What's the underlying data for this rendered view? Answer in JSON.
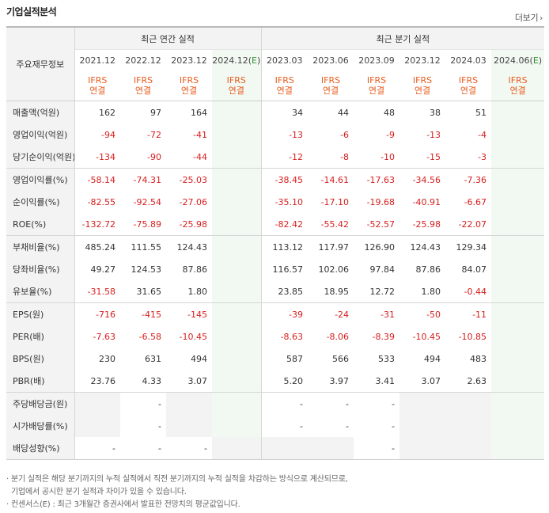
{
  "section_title": "기업실적분석",
  "more_label": "더보기",
  "row_header_label": "주요재무정보",
  "annual_group_label": "최근 연간 실적",
  "quarter_group_label": "최근 분기 실적",
  "annual_periods": [
    "2021.12",
    "2022.12",
    "2023.12",
    "2024.12(E)"
  ],
  "quarter_periods": [
    "2023.03",
    "2023.06",
    "2023.09",
    "2023.12",
    "2024.03",
    "2024.06(E)"
  ],
  "ifrs_top": "IFRS",
  "ifrs_bottom": "연결",
  "rows": [
    {
      "label": "매출액(억원)",
      "annual": [
        "162",
        "97",
        "164",
        ""
      ],
      "quarter": [
        "34",
        "44",
        "48",
        "38",
        "51",
        ""
      ]
    },
    {
      "label": "영업이익(억원)",
      "annual": [
        "-94",
        "-72",
        "-41",
        ""
      ],
      "quarter": [
        "-13",
        "-6",
        "-9",
        "-13",
        "-4",
        ""
      ]
    },
    {
      "label": "당기순이익(억원)",
      "annual": [
        "-134",
        "-90",
        "-44",
        ""
      ],
      "quarter": [
        "-12",
        "-8",
        "-10",
        "-15",
        "-3",
        ""
      ]
    },
    {
      "label": "영업이익률(%)",
      "annual": [
        "-58.14",
        "-74.31",
        "-25.03",
        ""
      ],
      "quarter": [
        "-38.45",
        "-14.61",
        "-17.63",
        "-34.56",
        "-7.36",
        ""
      ]
    },
    {
      "label": "순이익률(%)",
      "annual": [
        "-82.55",
        "-92.54",
        "-27.06",
        ""
      ],
      "quarter": [
        "-35.10",
        "-17.10",
        "-19.68",
        "-40.91",
        "-6.67",
        ""
      ]
    },
    {
      "label": "ROE(%)",
      "annual": [
        "-132.72",
        "-75.89",
        "-25.98",
        ""
      ],
      "quarter": [
        "-82.42",
        "-55.42",
        "-52.57",
        "-25.98",
        "-22.07",
        ""
      ]
    },
    {
      "label": "부채비율(%)",
      "annual": [
        "485.24",
        "111.55",
        "124.43",
        ""
      ],
      "quarter": [
        "113.12",
        "117.97",
        "126.90",
        "124.43",
        "129.34",
        ""
      ]
    },
    {
      "label": "당좌비율(%)",
      "annual": [
        "49.27",
        "124.53",
        "87.86",
        ""
      ],
      "quarter": [
        "116.57",
        "102.06",
        "97.84",
        "87.86",
        "84.07",
        ""
      ]
    },
    {
      "label": "유보율(%)",
      "annual": [
        "-31.58",
        "31.65",
        "1.80",
        ""
      ],
      "quarter": [
        "23.85",
        "18.95",
        "12.72",
        "1.80",
        "-0.44",
        ""
      ]
    },
    {
      "label": "EPS(원)",
      "annual": [
        "-716",
        "-415",
        "-145",
        ""
      ],
      "quarter": [
        "-39",
        "-24",
        "-31",
        "-50",
        "-11",
        ""
      ]
    },
    {
      "label": "PER(배)",
      "annual": [
        "-7.63",
        "-6.58",
        "-10.45",
        ""
      ],
      "quarter": [
        "-8.63",
        "-8.06",
        "-8.39",
        "-10.45",
        "-10.85",
        ""
      ]
    },
    {
      "label": "BPS(원)",
      "annual": [
        "230",
        "631",
        "494",
        ""
      ],
      "quarter": [
        "587",
        "566",
        "533",
        "494",
        "483",
        ""
      ]
    },
    {
      "label": "PBR(배)",
      "annual": [
        "23.76",
        "4.33",
        "3.07",
        ""
      ],
      "quarter": [
        "5.20",
        "3.97",
        "3.41",
        "3.07",
        "2.63",
        ""
      ]
    },
    {
      "label": "주당배당금(원)",
      "annual": [
        "",
        "-",
        "",
        ""
      ],
      "quarter": [
        "-",
        "-",
        "-",
        "",
        "",
        ""
      ]
    },
    {
      "label": "시가배당률(%)",
      "annual": [
        "",
        "-",
        "",
        ""
      ],
      "quarter": [
        "-",
        "-",
        "-",
        "",
        "",
        ""
      ]
    },
    {
      "label": "배당성향(%)",
      "annual": [
        "-",
        "-",
        "-",
        ""
      ],
      "quarter": [
        "",
        "",
        "-",
        "",
        "",
        ""
      ]
    }
  ],
  "notes": [
    "· 분기 실적은 해당 분기까지의 누적 실적에서 직전 분기까지의 누적 실적을 차감하는 방식으로 계산되므로,",
    "  기업에서 공시한 분기 실적과 차이가 있을 수 있습니다.",
    "· 컨센서스(E) : 최근 3개월간 증권사에서 발표한 전망치의 평균값입니다."
  ],
  "colors": {
    "negative": "#d61e1e",
    "ifrs": "#e85c1e",
    "estimate_bg": "#f2f9f2",
    "header_bg": "#f3f3f3"
  }
}
